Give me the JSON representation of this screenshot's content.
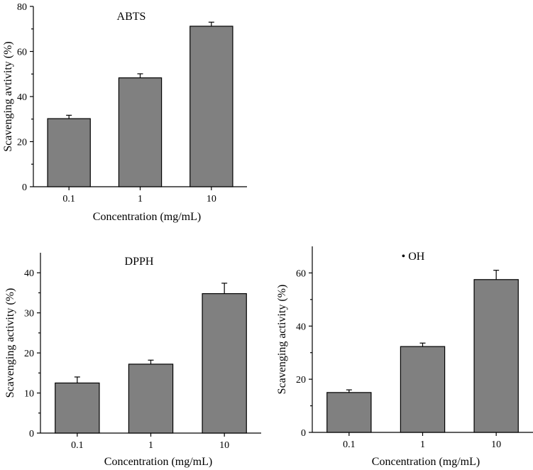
{
  "chart_data": [
    {
      "type": "bar",
      "title": "ABTS",
      "categories": [
        "0.1",
        "1",
        "10"
      ],
      "values": [
        30.2,
        48.3,
        71.2
      ],
      "errors": [
        1.5,
        1.8,
        1.8
      ],
      "xlabel": "Concentration (mg/mL)",
      "ylabel": "Scavenging avtivity (%)",
      "ylim": [
        0,
        80
      ],
      "yticks": [
        0,
        20,
        40,
        60,
        80
      ],
      "ytick_labels": [
        "0",
        "20",
        "40",
        "60",
        "80"
      ]
    },
    {
      "type": "bar",
      "title": "DPPH",
      "categories": [
        "0.1",
        "1",
        "10"
      ],
      "values": [
        12.5,
        17.2,
        34.8
      ],
      "errors": [
        1.5,
        1.0,
        2.6
      ],
      "xlabel": "Concentration (mg/mL)",
      "ylabel": "Scavenging activity (%)",
      "ylim": [
        0,
        45
      ],
      "yticks": [
        0,
        10,
        20,
        30,
        40
      ],
      "ytick_labels": [
        "0",
        "10",
        "20",
        "30",
        "40"
      ]
    },
    {
      "type": "bar",
      "title": "• OH",
      "categories": [
        "0.1",
        "1",
        "10"
      ],
      "values": [
        15.0,
        32.3,
        57.5
      ],
      "errors": [
        1.0,
        1.3,
        3.5
      ],
      "xlabel": "Concentration (mg/mL)",
      "ylabel": "Scavenging activity (%)",
      "ylim": [
        0,
        70
      ],
      "yticks": [
        0,
        20,
        40,
        60
      ],
      "ytick_labels": [
        "0",
        "20",
        "40",
        "60"
      ]
    }
  ]
}
